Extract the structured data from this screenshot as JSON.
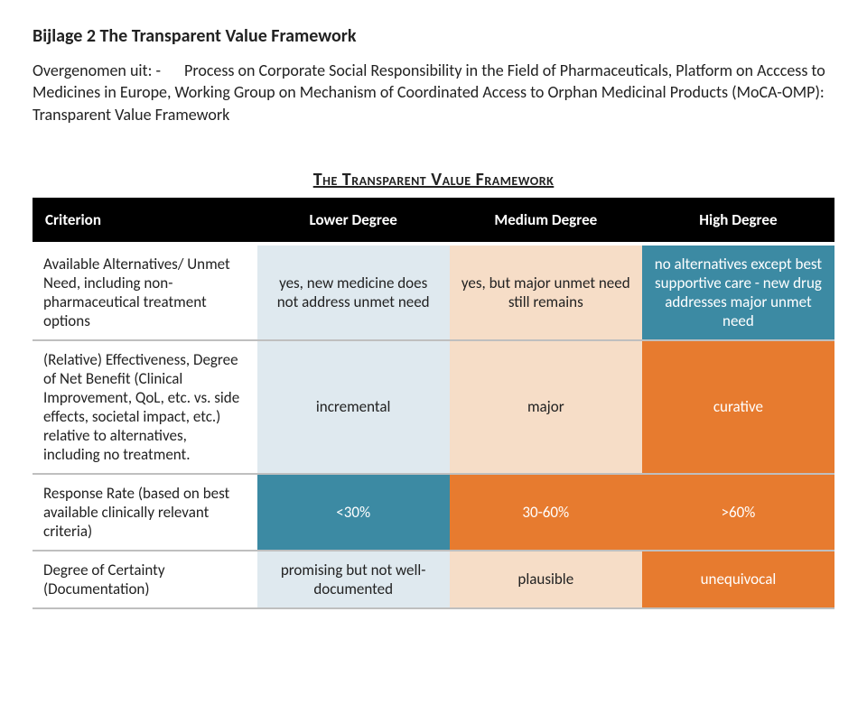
{
  "doc": {
    "title": "Bijlage 2 The Transparent Value Framework",
    "intro_label": "Overgenomen uit: -",
    "intro_text": "Process on Corporate Social Responsibility in the Field of Pharmaceuticals, Platform on Acccess to Medicines in Europe, Working Group on Mechanism of Coordinated Access to Orphan Medicinal Products (MoCA-OMP): Transparent Value Framework"
  },
  "framework": {
    "title": "The Transparent Value Framework",
    "header_bg": "#000000",
    "header_text_color": "#ffffff",
    "row_border_color": "#bfbfbf",
    "columns": [
      "Criterion",
      "Lower Degree",
      "Medium Degree",
      "High Degree"
    ],
    "degree_palette": {
      "criterion_bg": "#ffffff",
      "lower_bg_light": "#dfe9ef",
      "lower_bg_blue": "#3c8aa3",
      "medium_bg_light": "#f6ddc7",
      "medium_bg_orange": "#e77b2f",
      "high_bg_orange": "#e77b2f",
      "high_bg_blue": "#3c8aa3",
      "text_dark": "#222222",
      "text_white": "#ffffff"
    },
    "rows": [
      {
        "criterion": "Available Alternatives/ Unmet Need, including non-pharmaceutical treatment options",
        "lower": {
          "text": "yes, new medicine does not address unmet need",
          "bg": "#dfe9ef",
          "fg": "#222222"
        },
        "medium": {
          "text": "yes, but major unmet need still remains",
          "bg": "#f6ddc7",
          "fg": "#222222"
        },
        "high": {
          "text": "no alternatives except best supportive care - new drug addresses major unmet need",
          "bg": "#3c8aa3",
          "fg": "#ffffff"
        }
      },
      {
        "criterion": "(Relative) Effectiveness, Degree of Net Benefit (Clinical Improvement, QoL, etc. vs. side effects, societal impact, etc.) relative to alternatives, including no treatment.",
        "lower": {
          "text": "incremental",
          "bg": "#dfe9ef",
          "fg": "#222222"
        },
        "medium": {
          "text": "major",
          "bg": "#f6ddc7",
          "fg": "#222222"
        },
        "high": {
          "text": "curative",
          "bg": "#e77b2f",
          "fg": "#ffffff"
        }
      },
      {
        "criterion": "Response Rate (based on best available clinically relevant criteria)",
        "lower": {
          "text": "<30%",
          "bg": "#3c8aa3",
          "fg": "#ffffff"
        },
        "medium": {
          "text": "30-60%",
          "bg": "#e77b2f",
          "fg": "#ffffff"
        },
        "high": {
          "text": ">60%",
          "bg": "#e77b2f",
          "fg": "#ffffff"
        }
      },
      {
        "criterion": "Degree of Certainty (Documentation)",
        "lower": {
          "text": "promising but not well-documented",
          "bg": "#dfe9ef",
          "fg": "#222222"
        },
        "medium": {
          "text": "plausible",
          "bg": "#f6ddc7",
          "fg": "#222222"
        },
        "high": {
          "text": "unequivocal",
          "bg": "#e77b2f",
          "fg": "#ffffff"
        }
      }
    ]
  }
}
